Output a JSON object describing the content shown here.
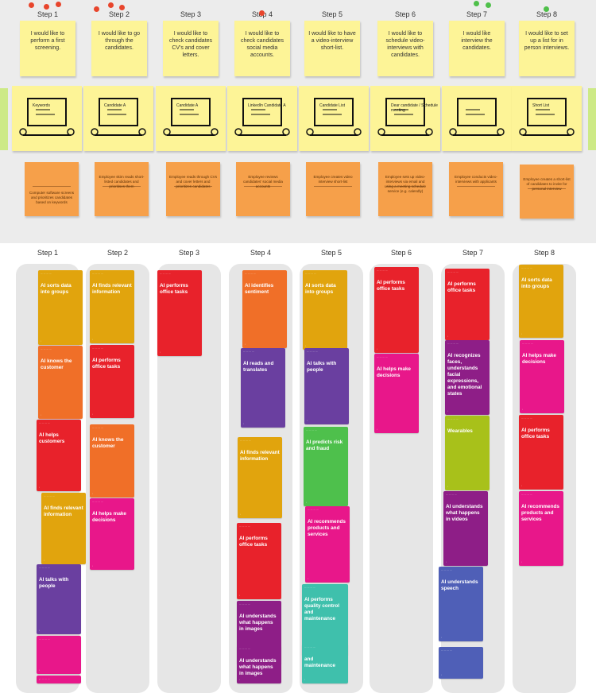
{
  "colors": {
    "sticky_yellow": "#fdf497",
    "sticky_orange": "#f6a04a",
    "dot_red": "#e8452c",
    "dot_green": "#4fc04a",
    "card_yellow": "#e1a40d",
    "card_orange": "#f06f28",
    "card_red": "#e8222b",
    "card_pink": "#e8178a",
    "card_purple": "#6a3fa0",
    "card_green": "#4ec04c",
    "card_lime": "#a8c11a",
    "card_magenta": "#8e1e87",
    "card_blue": "#4f5fb7",
    "card_teal": "#3fc0ac"
  },
  "scenario": {
    "steps": [
      {
        "label": "Step 1",
        "dot_color": "red",
        "need": "I would like to perform a first screening.",
        "sketch_icon": "magnifier-on-monitor-icon",
        "sketch_caption": "Keywords",
        "action": "Computer software screens and prioritizes candidates based on keywords"
      },
      {
        "label": "Step 2",
        "dot_color": "red",
        "need": "I would like to go through the candidates.",
        "sketch_icon": "person-at-computer-icon",
        "sketch_caption": "Candidate A",
        "action": "Employee skim reads short-listed candidates and prioritises them"
      },
      {
        "label": "Step 3",
        "dot_color": "",
        "need": "I would like to check candidates CV's and cover letters.",
        "sketch_icon": "document-on-desk-icon",
        "sketch_caption": "Candidate A",
        "action": "Employee reads through CVs and cover letters and prioritizes candidates"
      },
      {
        "label": "Step 4",
        "dot_color": "red",
        "need": "I would like to check candidates social media accounts.",
        "sketch_icon": "linkedin-profile-icon",
        "sketch_caption": "LinkedIn Candidate A",
        "action": "Employee reviews candidates' social media accounts"
      },
      {
        "label": "Step 5",
        "dot_color": "",
        "need": "I would like to have a video-interview short-list.",
        "sketch_icon": "laptop-list-icon",
        "sketch_caption": "Candidate List",
        "action": "Employee creates video interview short-list"
      },
      {
        "label": "Step 6",
        "dot_color": "",
        "need": "I would like to schedule video-interviews with candidates.",
        "sketch_icon": "email-on-laptop-icon",
        "sketch_caption": "Dear candidate / Schedule meeting",
        "action": "Employee sets up video-interviews via email and using a meeting schedule service (e.g. calendly)"
      },
      {
        "label": "Step 7",
        "dot_color": "green",
        "need": "I would like interview the candidates.",
        "sketch_icon": "video-call-icon",
        "sketch_caption": "",
        "action": "Employee conducts video-interviews with applicants"
      },
      {
        "label": "Step 8",
        "dot_color": "green",
        "need": "I would like to set up a list for in person interviews.",
        "sketch_icon": "laptop-shortlist-icon",
        "sketch_caption": "Short List",
        "action": "Employee creates a short-list of candidates to invite for personal interview"
      }
    ]
  },
  "lanes": [
    {
      "label": "Step 1",
      "cards": [
        {
          "title": "AI sorts data into groups",
          "color": "yellow"
        },
        {
          "title": "AI knows the customer",
          "color": "orange"
        },
        {
          "title": "AI helps customers",
          "color": "red"
        },
        {
          "title": "AI finds relevant information",
          "color": "yellow"
        },
        {
          "title": "AI talks with people",
          "color": "purple"
        },
        {
          "title": "",
          "color": "pink"
        },
        {
          "title": "",
          "color": "pink"
        }
      ]
    },
    {
      "label": "Step 2",
      "cards": [
        {
          "title": "AI finds relevant information",
          "color": "yellow"
        },
        {
          "title": "AI performs office tasks",
          "color": "red"
        },
        {
          "title": "AI knows the customer",
          "color": "orange"
        },
        {
          "title": "AI helps make decisions",
          "color": "pink"
        }
      ]
    },
    {
      "label": "Step 3",
      "cards": [
        {
          "title": "AI performs office tasks",
          "color": "red"
        }
      ]
    },
    {
      "label": "Step 4",
      "cards": [
        {
          "title": "AI identifies sentiment",
          "color": "orange"
        },
        {
          "title": "AI reads and translates",
          "color": "purple"
        },
        {
          "title": "AI finds relevant information",
          "color": "yellow"
        },
        {
          "title": "AI performs office tasks",
          "color": "red"
        },
        {
          "title": "AI understands what happens in images",
          "color": "magenta"
        },
        {
          "title": "AI understands what happens in images",
          "color": "magenta"
        }
      ]
    },
    {
      "label": "Step 5",
      "cards": [
        {
          "title": "AI sorts data into groups",
          "color": "yellow"
        },
        {
          "title": "AI talks with people",
          "color": "purple"
        },
        {
          "title": "AI predicts risk and fraud",
          "color": "green"
        },
        {
          "title": "AI recommends products and services",
          "color": "pink"
        },
        {
          "title": "AI performs quality control and maintenance",
          "color": "teal"
        },
        {
          "title": "and maintenance",
          "color": "teal"
        }
      ]
    },
    {
      "label": "Step 6",
      "cards": [
        {
          "title": "AI performs office tasks",
          "color": "red"
        },
        {
          "title": "AI helps make decisions",
          "color": "pink"
        }
      ]
    },
    {
      "label": "Step 7",
      "cards": [
        {
          "title": "AI performs office tasks",
          "color": "red"
        },
        {
          "title": "AI recognizes faces, understands facial expressions, and emotional states",
          "color": "magenta"
        },
        {
          "title": "Wearables",
          "color": "lime"
        },
        {
          "title": "AI understands what happens in videos",
          "color": "magenta"
        },
        {
          "title": "AI understands speech",
          "color": "blue"
        },
        {
          "title": "",
          "color": "blue"
        }
      ]
    },
    {
      "label": "Step 8",
      "cards": [
        {
          "title": "AI sorts data into groups",
          "color": "yellow"
        },
        {
          "title": "AI helps make decisions",
          "color": "pink"
        },
        {
          "title": "AI performs office tasks",
          "color": "red"
        },
        {
          "title": "AI recommends products and services",
          "color": "pink"
        }
      ]
    }
  ]
}
